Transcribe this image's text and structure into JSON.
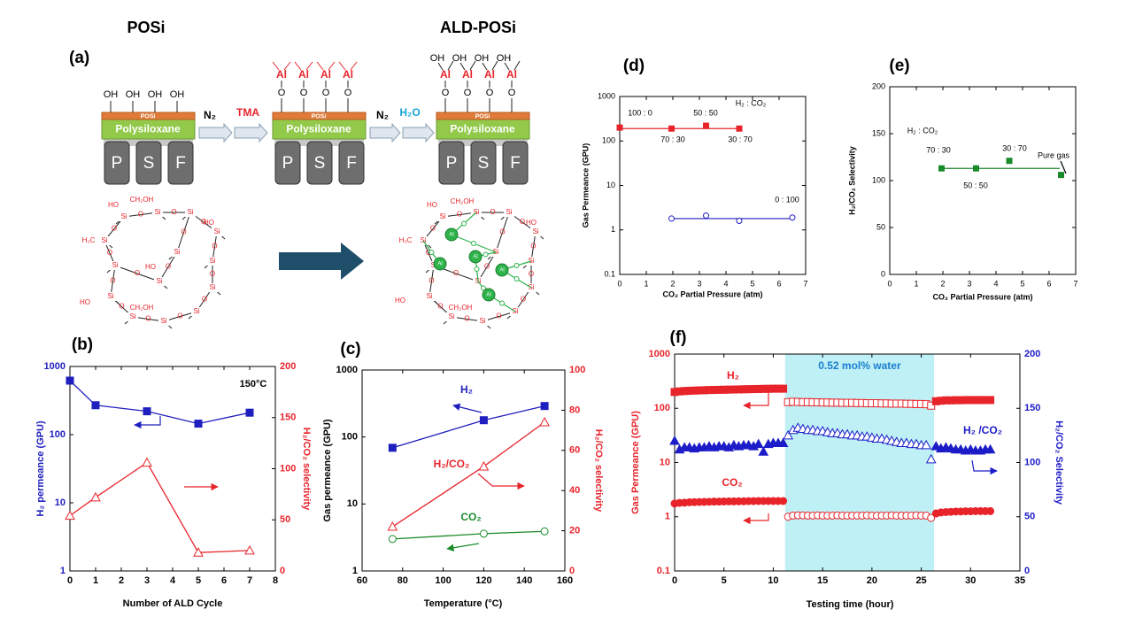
{
  "diagram": {
    "panel": "(a)",
    "titles": [
      "POSi",
      "ALD-POSi"
    ],
    "layer_top": "POSi",
    "layer_mid": "Polysiloxane",
    "support": [
      "P",
      "S",
      "F"
    ],
    "steps": [
      "N₂",
      "TMA",
      "N₂",
      "H₂O"
    ],
    "hydroxyl": "OH",
    "aluminum": "Al",
    "oxygen": "O",
    "silicon": "Si",
    "network_labels": [
      [
        "HO",
        "CH₂OH",
        "HO",
        "H₃C",
        "HO",
        "HO",
        "CH₂OH"
      ],
      [
        "HO",
        "CH₂OH",
        "HO",
        "H₃C",
        "HO",
        "CH₂OH"
      ]
    ]
  },
  "chart_data": [
    {
      "panel": "(b)",
      "type": "line",
      "x": [
        0,
        1,
        3,
        5,
        7
      ],
      "xlim": [
        0,
        8
      ],
      "xticks": [
        0,
        1,
        2,
        3,
        4,
        5,
        6,
        7,
        8
      ],
      "ylog": true,
      "ylim": [
        1,
        1000
      ],
      "yticks": [
        1,
        10,
        100,
        1000
      ],
      "y2lim": [
        0,
        200
      ],
      "y2ticks": [
        0,
        50,
        100,
        150,
        200
      ],
      "ycolor": "#1f1fbf",
      "y2color": "#e8242b",
      "xlabel": "Number of ALD Cycle",
      "ylabel": "H₂ permeance (GPU)",
      "y2label": "H₂/CO₂ selectivity",
      "annotations": [
        "150°C"
      ],
      "series": [
        {
          "color": "#1f1fbf",
          "marker": "square",
          "filled": true,
          "values": [
            620,
            270,
            220,
            145,
            210
          ]
        },
        {
          "color": "#e8242b",
          "marker": "triangle",
          "filled": false,
          "axis": "y2",
          "values": [
            54,
            72,
            106,
            18,
            20
          ]
        }
      ]
    },
    {
      "panel": "(c)",
      "type": "line",
      "x": [
        75,
        120,
        150
      ],
      "xlim": [
        60,
        160
      ],
      "xticks": [
        60,
        80,
        100,
        120,
        140,
        160
      ],
      "ylog": true,
      "ylim": [
        1,
        1000
      ],
      "yticks": [
        1,
        10,
        100,
        1000
      ],
      "y2lim": [
        0,
        100
      ],
      "y2ticks": [
        0,
        20,
        40,
        60,
        80,
        100
      ],
      "ycolor": "#000000",
      "y2color": "#e8242b",
      "xlabel": "Temperature (°C)",
      "ylabel": "Gas permeance (GPU)",
      "y2label": "H₂/CO₂ selectivity",
      "series": [
        {
          "name": "H₂",
          "color": "#1f1fbf",
          "marker": "square",
          "filled": true,
          "values": [
            69,
            178,
            290
          ]
        },
        {
          "name": "CO₂",
          "color": "#1a8a2a",
          "marker": "circle",
          "filled": false,
          "values": [
            3.0,
            3.6,
            3.9
          ]
        },
        {
          "name": "H₂/CO₂",
          "color": "#e8242b",
          "marker": "triangle",
          "filled": false,
          "axis": "y2",
          "values": [
            22,
            52,
            74
          ]
        }
      ]
    },
    {
      "panel": "(d)",
      "type": "scatter",
      "xlim": [
        0,
        7
      ],
      "xticks": [
        0,
        1,
        2,
        3,
        4,
        5,
        6,
        7
      ],
      "ylog": true,
      "ylim": [
        0.1,
        1000
      ],
      "yticks": [
        0.1,
        1,
        10,
        100,
        1000
      ],
      "xlabel": "CO₂ Partial Pressure (atm)",
      "ylabel": "Gas Permeance (GPU)",
      "annotations": [
        "H₂ : CO₂",
        "100 : 0",
        "70 : 30",
        "50 : 50",
        "30 : 70",
        "0 : 100"
      ],
      "series": [
        {
          "color": "#e8242b",
          "marker": "square",
          "filled": true,
          "x": [
            0,
            1.95,
            3.25,
            4.5
          ],
          "values": [
            200,
            190,
            220,
            190
          ],
          "fit": {
            "x": [
              0,
              4.6
            ],
            "value": 190
          }
        },
        {
          "color": "#1f1fbf",
          "marker": "circle",
          "filled": false,
          "x": [
            1.95,
            3.25,
            4.5,
            6.5
          ],
          "values": [
            1.8,
            2.1,
            1.6,
            1.9
          ],
          "fit": {
            "x": [
              1.95,
              6.5
            ],
            "value": 1.8
          }
        }
      ]
    },
    {
      "panel": "(e)",
      "type": "scatter",
      "xlim": [
        0,
        7
      ],
      "xticks": [
        0,
        1,
        2,
        3,
        4,
        5,
        6,
        7
      ],
      "ylim": [
        0,
        200
      ],
      "yticks": [
        0,
        50,
        100,
        150,
        200
      ],
      "xlabel": "CO₂ Partial Pressure (atm)",
      "ylabel": "H₂/CO₂ Selectivity",
      "annotations": [
        "H₂ : CO₂",
        "70 : 30",
        "50 : 50",
        "30 : 70",
        "Pure gas"
      ],
      "series": [
        {
          "color": "#1a8a2a",
          "marker": "square",
          "filled": true,
          "x": [
            1.95,
            3.25,
            4.5,
            6.45
          ],
          "values": [
            113,
            113,
            121,
            106
          ],
          "fit": {
            "x": [
              1.95,
              6.4
            ],
            "value": 113
          }
        }
      ]
    },
    {
      "panel": "(f)",
      "type": "scatter",
      "x": [
        0,
        0.5,
        1,
        1.5,
        2,
        2.5,
        3,
        3.5,
        4,
        4.5,
        5,
        5.5,
        6,
        6.5,
        7,
        7.5,
        8,
        8.5,
        9,
        9.5,
        10,
        10.5,
        11,
        11.5,
        12,
        12.5,
        13,
        13.5,
        14,
        14.5,
        15,
        15.5,
        16,
        16.5,
        17,
        17.5,
        18,
        18.5,
        19,
        19.5,
        20,
        20.5,
        21,
        21.5,
        22,
        22.5,
        23,
        23.5,
        24,
        24.5,
        25,
        25.5,
        26,
        26.5,
        27,
        27.5,
        28,
        28.5,
        29,
        29.5,
        30,
        30.5,
        31,
        31.5,
        32
      ],
      "xlim": [
        0,
        35
      ],
      "xticks": [
        0,
        5,
        10,
        15,
        20,
        25,
        30,
        35
      ],
      "ylog": true,
      "ylim": [
        0.1,
        1000
      ],
      "yticks": [
        0.1,
        1,
        10,
        100,
        1000
      ],
      "y2lim": [
        0,
        200
      ],
      "y2ticks": [
        0,
        50,
        100,
        150,
        200
      ],
      "ycolor": "#e8242b",
      "y2color": "#1c1cc8",
      "xlabel": "Testing time (hour)",
      "ylabel": "Gas Permeance (GPU)",
      "y2label": "H₂/CO₂ Selectivity",
      "band": {
        "x": [
          11.2,
          26.3
        ],
        "label": "0.52 mol% water",
        "color": "#bff0f5"
      },
      "series": [
        {
          "name": "H₂",
          "color": "#e8242b",
          "marker": "square",
          "filled": true,
          "values": [
            200,
            205,
            208,
            210,
            212,
            214,
            215,
            217,
            218,
            219,
            220,
            221,
            222,
            223,
            224,
            225,
            226,
            227,
            228,
            229,
            230,
            230,
            230,
            130,
            132,
            131,
            130,
            130,
            129,
            129,
            128,
            128,
            127,
            127,
            126,
            126,
            126,
            125,
            125,
            124,
            124,
            124,
            123,
            123,
            122,
            122,
            122,
            121,
            121,
            120,
            120,
            119,
            112,
            135,
            138,
            140,
            140,
            141,
            141,
            142,
            142,
            142,
            142,
            142,
            142
          ]
        },
        {
          "name": "CO₂",
          "color": "#e8242b",
          "marker": "circle",
          "filled": true,
          "values": [
            1.75,
            1.8,
            1.82,
            1.85,
            1.86,
            1.87,
            1.88,
            1.89,
            1.9,
            1.9,
            1.91,
            1.92,
            1.92,
            1.93,
            1.93,
            1.94,
            1.94,
            1.95,
            1.95,
            1.95,
            1.95,
            1.95,
            1.95,
            1.0,
            1.05,
            1.06,
            1.06,
            1.05,
            1.05,
            1.06,
            1.05,
            1.05,
            1.05,
            1.06,
            1.05,
            1.05,
            1.05,
            1.05,
            1.05,
            1.06,
            1.05,
            1.05,
            1.05,
            1.05,
            1.06,
            1.05,
            1.05,
            1.05,
            1.05,
            1.06,
            1.05,
            1.05,
            0.95,
            1.15,
            1.2,
            1.22,
            1.23,
            1.25,
            1.25,
            1.26,
            1.26,
            1.27,
            1.27,
            1.27,
            1.27
          ]
        },
        {
          "name": "H₂ /CO₂",
          "color": "#1c1cc8",
          "marker": "triangle",
          "filled": true,
          "axis": "y2",
          "values": [
            120,
            112,
            114,
            114,
            113,
            114,
            114,
            115,
            114,
            115,
            115,
            114,
            116,
            115,
            116,
            116,
            115,
            117,
            110,
            117,
            118,
            118,
            118,
            125,
            130,
            132,
            131,
            130,
            130,
            129,
            129,
            128,
            127,
            127,
            126,
            126,
            125,
            125,
            124,
            124,
            123,
            122,
            122,
            121,
            120,
            119,
            118,
            118,
            117,
            117,
            116,
            116,
            103,
            115,
            113,
            114,
            113,
            112,
            112,
            111,
            112,
            111,
            111,
            112,
            112
          ]
        }
      ]
    }
  ]
}
